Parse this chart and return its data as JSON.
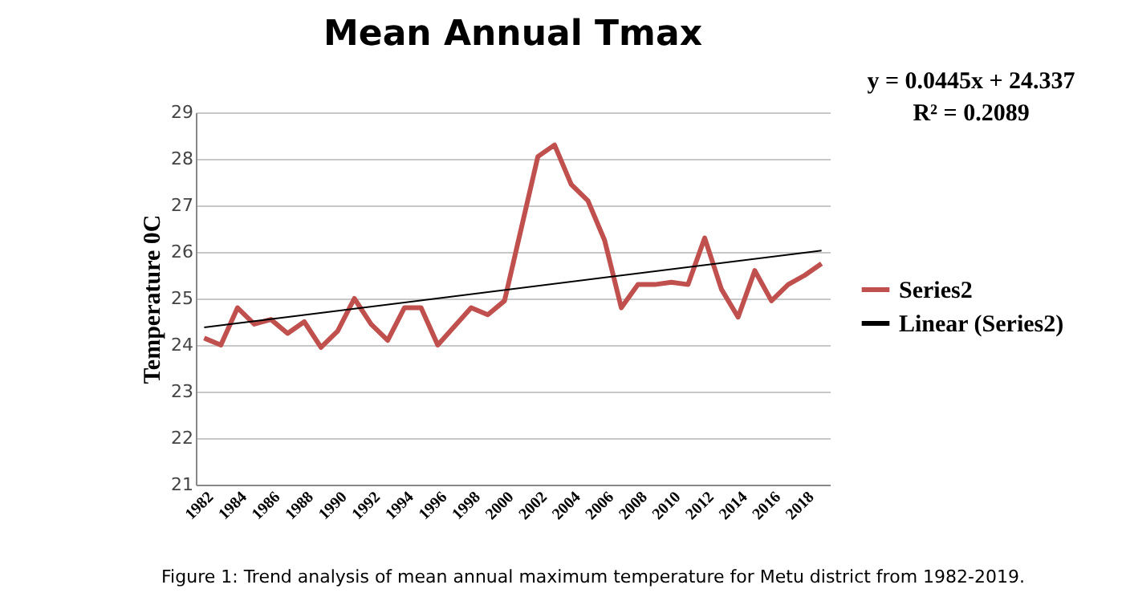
{
  "chart_data": {
    "type": "line",
    "title": "Mean Annual Tmax",
    "ylabel": "Temperature 0C",
    "x": [
      1982,
      1983,
      1984,
      1985,
      1986,
      1987,
      1988,
      1989,
      1990,
      1991,
      1992,
      1993,
      1994,
      1995,
      1996,
      1997,
      1998,
      1999,
      2000,
      2001,
      2002,
      2003,
      2004,
      2005,
      2006,
      2007,
      2008,
      2009,
      2010,
      2011,
      2012,
      2013,
      2014,
      2015,
      2016,
      2017,
      2018,
      2019
    ],
    "series": [
      {
        "name": "Series2",
        "color": "#c0504d",
        "values": [
          24.15,
          24.0,
          24.8,
          24.45,
          24.55,
          24.25,
          24.5,
          23.95,
          24.3,
          25.0,
          24.45,
          24.1,
          24.8,
          24.8,
          24.0,
          24.4,
          24.8,
          24.65,
          24.95,
          26.5,
          28.05,
          28.3,
          27.45,
          27.1,
          26.25,
          24.8,
          25.3,
          25.3,
          25.35,
          25.3,
          26.3,
          25.2,
          24.6,
          25.6,
          24.95,
          25.3,
          25.5,
          25.75
        ]
      },
      {
        "name": "Linear (Series2)",
        "color": "#000000",
        "type": "line",
        "x": [
          1982,
          2019
        ],
        "values": [
          24.38,
          26.03
        ]
      }
    ],
    "xlim": [
      1981.5,
      2019.5
    ],
    "xticks": [
      1982,
      1984,
      1986,
      1988,
      1990,
      1992,
      1994,
      1996,
      1998,
      2000,
      2002,
      2004,
      2006,
      2008,
      2010,
      2012,
      2014,
      2016,
      2018
    ],
    "ylim": [
      21,
      29
    ],
    "yticks": [
      21,
      22,
      23,
      24,
      25,
      26,
      27,
      28,
      29
    ],
    "grid": "y",
    "legend": "right",
    "annotations": [
      "y = 0.0445x + 24.337",
      "R² = 0.2089",
      "Figure 1: Trend analysis of mean annual maximum temperature for Metu district from 1982-2019."
    ]
  }
}
